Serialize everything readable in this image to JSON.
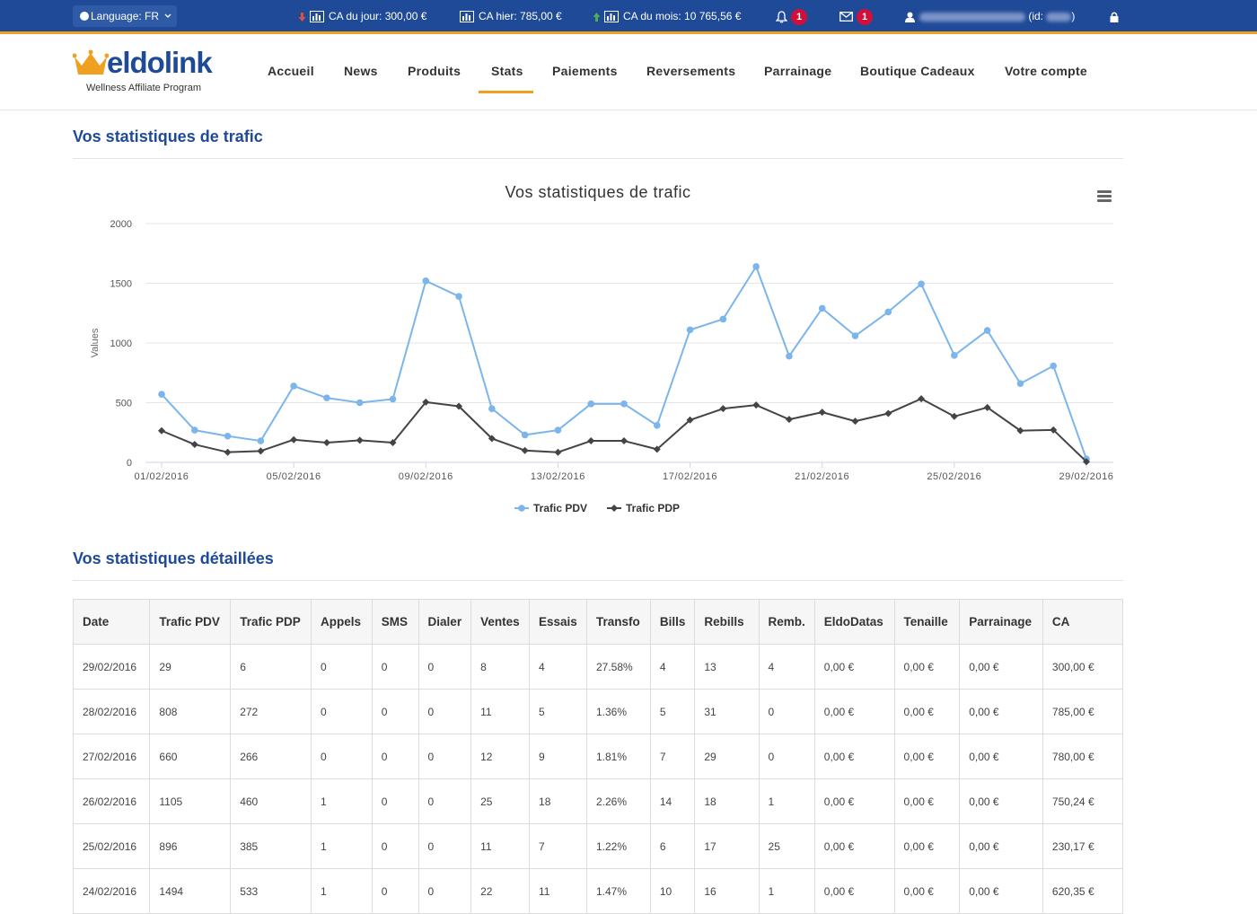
{
  "topbar": {
    "language": "Language: FR",
    "ca_jour": "CA du jour: 300,00 €",
    "ca_hier": "CA hier: 785,00 €",
    "ca_mois": "CA du mois: 10 765,56 €",
    "notifications_count": "1",
    "messages_count": "1",
    "user_id_label": "(id:",
    "user_id_close": ")",
    "colors": {
      "bar": "#1f4a97",
      "accent": "#f0a020",
      "badge": "#d0103a",
      "down_arrow": "#e05040",
      "up_arrow": "#4caf50"
    }
  },
  "logo": {
    "text": "eldolink",
    "subtitle": "Wellness Affiliate Program"
  },
  "nav": {
    "items": [
      "Accueil",
      "News",
      "Produits",
      "Stats",
      "Paiements",
      "Reversements",
      "Parrainage",
      "Boutique Cadeaux",
      "Votre compte"
    ],
    "active": "Stats"
  },
  "traffic_section": {
    "title": "Vos statistiques de trafic"
  },
  "chart_data": {
    "type": "line",
    "title": "Vos statistiques de trafic",
    "ylabel": "Values",
    "ylim": [
      0,
      2000
    ],
    "yticks": [
      "0",
      "500",
      "1000",
      "1500",
      "2000"
    ],
    "x": [
      "01/02/2016",
      "02/02/2016",
      "03/02/2016",
      "04/02/2016",
      "05/02/2016",
      "06/02/2016",
      "07/02/2016",
      "08/02/2016",
      "09/02/2016",
      "10/02/2016",
      "11/02/2016",
      "12/02/2016",
      "13/02/2016",
      "14/02/2016",
      "15/02/2016",
      "16/02/2016",
      "17/02/2016",
      "18/02/2016",
      "19/02/2016",
      "20/02/2016",
      "21/02/2016",
      "22/02/2016",
      "23/02/2016",
      "24/02/2016",
      "25/02/2016",
      "26/02/2016",
      "27/02/2016",
      "28/02/2016",
      "29/02/2016"
    ],
    "xtick_labels": [
      "01/02/2016",
      "05/02/2016",
      "09/02/2016",
      "13/02/2016",
      "17/02/2016",
      "21/02/2016",
      "25/02/2016",
      "29/02/2016"
    ],
    "grid": true,
    "legend_position": "bottom-center",
    "series": [
      {
        "name": "Trafic PDV",
        "color": "#7cb5ec",
        "marker": "circle",
        "values": [
          570,
          270,
          220,
          180,
          640,
          540,
          500,
          530,
          1520,
          1390,
          450,
          230,
          270,
          490,
          490,
          310,
          1110,
          1200,
          1640,
          890,
          1290,
          1060,
          1260,
          1494,
          896,
          1105,
          660,
          808,
          29
        ]
      },
      {
        "name": "Trafic PDP",
        "color": "#434348",
        "marker": "diamond",
        "values": [
          265,
          150,
          85,
          95,
          190,
          165,
          185,
          165,
          505,
          470,
          200,
          100,
          85,
          180,
          180,
          110,
          355,
          450,
          480,
          360,
          420,
          345,
          410,
          533,
          385,
          460,
          266,
          272,
          6
        ]
      }
    ]
  },
  "detail_section": {
    "title": "Vos statistiques détaillées"
  },
  "table": {
    "headers": [
      "Date",
      "Trafic PDV",
      "Trafic PDP",
      "Appels",
      "SMS",
      "Dialer",
      "Ventes",
      "Essais",
      "Transfo",
      "Bills",
      "Rebills",
      "Remb.",
      "EldoDatas",
      "Tenaille",
      "Parrainage",
      "CA"
    ],
    "rows": [
      [
        "29/02/2016",
        "29",
        "6",
        "0",
        "0",
        "0",
        "8",
        "4",
        "27.58%",
        "4",
        "13",
        "4",
        "0,00 €",
        "0,00 €",
        "0,00 €",
        "300,00 €"
      ],
      [
        "28/02/2016",
        "808",
        "272",
        "0",
        "0",
        "0",
        "11",
        "5",
        "1.36%",
        "5",
        "31",
        "0",
        "0,00 €",
        "0,00 €",
        "0,00 €",
        "785,00 €"
      ],
      [
        "27/02/2016",
        "660",
        "266",
        "0",
        "0",
        "0",
        "12",
        "9",
        "1.81%",
        "7",
        "29",
        "0",
        "0,00 €",
        "0,00 €",
        "0,00 €",
        "780,00 €"
      ],
      [
        "26/02/2016",
        "1105",
        "460",
        "1",
        "0",
        "0",
        "25",
        "18",
        "2.26%",
        "14",
        "18",
        "1",
        "0,00 €",
        "0,00 €",
        "0,00 €",
        "750,24 €"
      ],
      [
        "25/02/2016",
        "896",
        "385",
        "1",
        "0",
        "0",
        "11",
        "7",
        "1.22%",
        "6",
        "17",
        "25",
        "0,00 €",
        "0,00 €",
        "0,00 €",
        "230,17 €"
      ],
      [
        "24/02/2016",
        "1494",
        "533",
        "1",
        "0",
        "0",
        "22",
        "11",
        "1.47%",
        "10",
        "16",
        "1",
        "0,00 €",
        "0,00 €",
        "0,00 €",
        "620,35 €"
      ]
    ]
  }
}
